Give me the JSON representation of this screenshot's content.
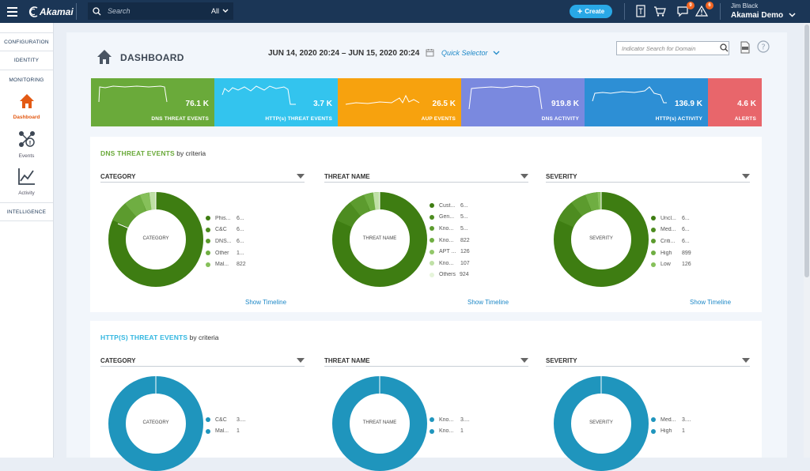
{
  "topbar": {
    "brand": "Akamai",
    "search": {
      "placeholder": "Search",
      "scope": "All"
    },
    "create_label": "Create",
    "icons": [
      {
        "name": "reports-icon",
        "badge": ""
      },
      {
        "name": "cart-icon",
        "badge": ""
      },
      {
        "name": "messages-icon",
        "badge": "9"
      },
      {
        "name": "alerts-icon",
        "badge": "6"
      }
    ],
    "user": {
      "name": "Jim Black",
      "org": "Akamai Demo"
    }
  },
  "sidebar": {
    "links": [
      "CONFIGURATION",
      "IDENTITY",
      "MONITORING"
    ],
    "items": [
      {
        "label": "Dashboard",
        "icon": "home-icon",
        "active": true
      },
      {
        "label": "Events",
        "icon": "events-icon",
        "active": false
      },
      {
        "label": "Activity",
        "icon": "activity-icon",
        "active": false
      }
    ],
    "bottom_link": "INTELLIGENCE"
  },
  "header": {
    "title": "DASHBOARD",
    "date_from": "JUN 14, 2020 20:24",
    "date_sep": "–",
    "date_to": "JUN 15, 2020 20:24",
    "quick_selector": "Quick Selector",
    "indicator_search_placeholder": "Indicator Search for Domain"
  },
  "tiles": [
    {
      "value": "76.1 K",
      "label": "DNS THREAT EVENTS",
      "color": "#6aaa3a"
    },
    {
      "value": "3.7 K",
      "label": "HTTP(s) THREAT EVENTS",
      "color": "#33c4ee"
    },
    {
      "value": "26.5 K",
      "label": "AUP EVENTS",
      "color": "#f7a20e"
    },
    {
      "value": "919.8 K",
      "label": "DNS ACTIVITY",
      "color": "#7a89df"
    },
    {
      "value": "136.9 K",
      "label": "HTTP(s) ACTIVITY",
      "color": "#2d8fd5"
    },
    {
      "value": "4.6 K",
      "label": "ALERTS",
      "color": "#e8666b"
    }
  ],
  "dns_panel": {
    "title": "DNS THREAT EVENTS",
    "suffix": "by criteria",
    "title_color": "#6aaa3a",
    "show_timeline": "Show Timeline",
    "columns": [
      {
        "header": "CATEGORY",
        "center": "CATEGORY",
        "legend": [
          {
            "name": "Phis...",
            "count": "6...",
            "color": "#3e7d12"
          },
          {
            "name": "C&C",
            "count": "6...",
            "color": "#4d8c20"
          },
          {
            "name": "DNS...",
            "count": "6...",
            "color": "#5c9b2e"
          },
          {
            "name": "Other",
            "count": "1...",
            "color": "#6fae42"
          },
          {
            "name": "Mal...",
            "count": "822",
            "color": "#86c05a"
          }
        ]
      },
      {
        "header": "THREAT NAME",
        "center": "THREAT NAME",
        "legend": [
          {
            "name": "Cust...",
            "count": "6...",
            "color": "#3e7d12"
          },
          {
            "name": "Gen...",
            "count": "5...",
            "color": "#4d8c20"
          },
          {
            "name": "Kno...",
            "count": "5...",
            "color": "#5c9b2e"
          },
          {
            "name": "Kno...",
            "count": "822",
            "color": "#6fae42"
          },
          {
            "name": "APT ...",
            "count": "126",
            "color": "#92c76a"
          },
          {
            "name": "Kno...",
            "count": "107",
            "color": "#bfe0a6"
          },
          {
            "name": "Others",
            "count": "924",
            "color": "#e6f4da"
          }
        ]
      },
      {
        "header": "SEVERITY",
        "center": "SEVERITY",
        "legend": [
          {
            "name": "Uncl...",
            "count": "6...",
            "color": "#3e7d12"
          },
          {
            "name": "Med...",
            "count": "6...",
            "color": "#4d8c20"
          },
          {
            "name": "Criti...",
            "count": "6...",
            "color": "#5c9b2e"
          },
          {
            "name": "High",
            "count": "899",
            "color": "#6fae42"
          },
          {
            "name": "Low",
            "count": "126",
            "color": "#86c05a"
          }
        ]
      }
    ]
  },
  "http_panel": {
    "title": "HTTP(S) THREAT EVENTS",
    "suffix": "by criteria",
    "title_color": "#33c4ee",
    "columns": [
      {
        "header": "CATEGORY",
        "center": "CATEGORY",
        "legend": [
          {
            "name": "C&C",
            "count": "3....",
            "color": "#1f95bd"
          },
          {
            "name": "Mal...",
            "count": "1",
            "color": "#1f95bd"
          }
        ]
      },
      {
        "header": "THREAT NAME",
        "center": "THREAT NAME",
        "legend": [
          {
            "name": "Kno...",
            "count": "3....",
            "color": "#1f95bd"
          },
          {
            "name": "Kno...",
            "count": "1",
            "color": "#1f95bd"
          }
        ]
      },
      {
        "header": "SEVERITY",
        "center": "SEVERITY",
        "legend": [
          {
            "name": "Med...",
            "count": "3....",
            "color": "#1f95bd"
          },
          {
            "name": "High",
            "count": "1",
            "color": "#1f95bd"
          }
        ]
      }
    ]
  }
}
